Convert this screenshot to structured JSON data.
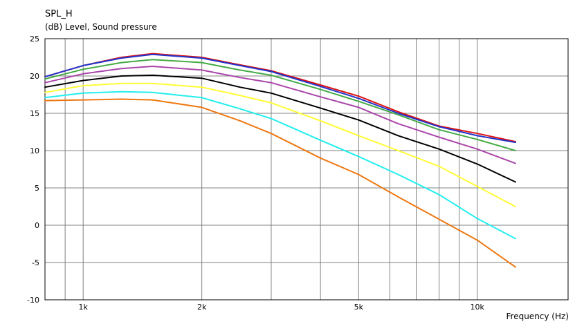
{
  "header": {
    "title": "SPL_H",
    "unit_label": "(dB)  Level, Sound pressure"
  },
  "chart_data": {
    "type": "line",
    "title": "SPL_H",
    "ylabel": "(dB)  Level, Sound pressure",
    "xlabel": "Frequency  (Hz)",
    "xscale": "log",
    "xlim": [
      800,
      17000
    ],
    "ylim": [
      -10,
      25
    ],
    "yticks": [
      25,
      20,
      15,
      10,
      5,
      0,
      -5,
      -10
    ],
    "xtick_labels": [
      {
        "value": 1000,
        "label": "1k"
      },
      {
        "value": 2000,
        "label": "2k"
      },
      {
        "value": 5000,
        "label": "5k"
      },
      {
        "value": 10000,
        "label": "10k"
      }
    ],
    "grid": true,
    "x": [
      800,
      1000,
      1250,
      1500,
      2000,
      2500,
      3000,
      4000,
      5000,
      6300,
      8000,
      10000,
      12500
    ],
    "series": [
      {
        "color": "#dd1111",
        "values": [
          19.9,
          21.4,
          22.5,
          23.0,
          22.5,
          21.5,
          20.7,
          18.8,
          17.3,
          15.2,
          13.3,
          12.3,
          11.2
        ]
      },
      {
        "color": "#2233cc",
        "values": [
          19.9,
          21.4,
          22.4,
          22.9,
          22.4,
          21.4,
          20.6,
          18.6,
          17.0,
          15.0,
          13.2,
          12.0,
          11.1
        ]
      },
      {
        "color": "#44aa44",
        "values": [
          19.6,
          20.9,
          21.8,
          22.2,
          21.8,
          20.8,
          20.1,
          18.2,
          16.6,
          14.8,
          12.8,
          11.5,
          10.0
        ]
      },
      {
        "color": "#aa44aa",
        "values": [
          19.1,
          20.3,
          21.0,
          21.3,
          20.8,
          19.8,
          19.1,
          17.2,
          15.8,
          13.6,
          11.8,
          10.2,
          8.3
        ]
      },
      {
        "color": "#000000",
        "values": [
          18.5,
          19.4,
          20.0,
          20.1,
          19.7,
          18.5,
          17.7,
          15.7,
          14.1,
          12.0,
          10.2,
          8.2,
          5.8
        ]
      },
      {
        "color": "#ffff33",
        "values": [
          17.8,
          18.7,
          19.0,
          19.0,
          18.5,
          17.4,
          16.4,
          14.0,
          12.0,
          10.0,
          7.9,
          5.2,
          2.5
        ]
      },
      {
        "color": "#22eeee",
        "values": [
          17.1,
          17.7,
          17.9,
          17.8,
          17.1,
          15.6,
          14.3,
          11.4,
          9.2,
          6.8,
          4.1,
          0.9,
          -1.8
        ]
      },
      {
        "color": "#ee7711",
        "values": [
          16.7,
          16.8,
          16.9,
          16.8,
          15.8,
          14.0,
          12.3,
          9.0,
          6.8,
          3.8,
          0.8,
          -2.0,
          -5.6
        ]
      }
    ]
  }
}
